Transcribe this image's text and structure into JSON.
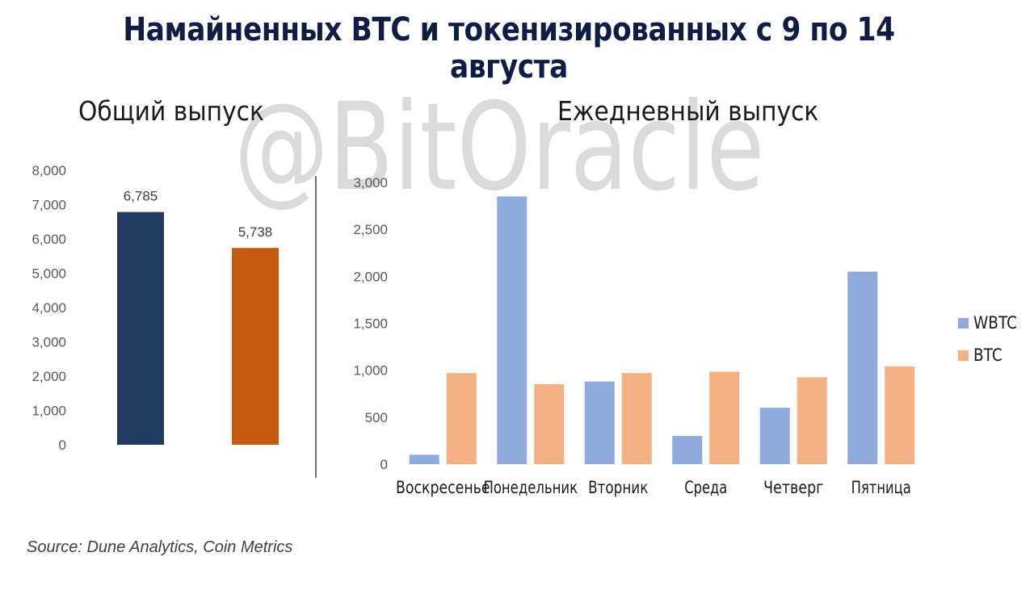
{
  "title": "Намайненных BTC и токенизированных с 9 по 14 августа",
  "watermark": "@BitOracle",
  "source": "Source: Dune Analytics, Coin Metrics",
  "colors": {
    "total_a": "#233a63",
    "total_b": "#c55a11",
    "wbtc": "#8faadc",
    "btc": "#f4b183"
  },
  "chart_data": [
    {
      "type": "bar",
      "title": "Общий выпуск",
      "categories": [
        "",
        ""
      ],
      "values": [
        6785,
        5738
      ],
      "data_labels": [
        "6,785",
        "5,738"
      ],
      "ylim": [
        0,
        8000
      ],
      "yticks": [
        "0",
        "1,000",
        "2,000",
        "3,000",
        "4,000",
        "5,000",
        "6,000",
        "7,000",
        "8,000"
      ],
      "legend": false,
      "grid": false
    },
    {
      "type": "bar",
      "title": "Ежедневный выпуск",
      "categories": [
        "Воскресенье",
        "Понедельник",
        "Вторник",
        "Среда",
        "Четверг",
        "Пятница"
      ],
      "series": [
        {
          "name": "WBTC",
          "values": [
            100,
            2850,
            880,
            300,
            600,
            2050
          ]
        },
        {
          "name": "BTC",
          "values": [
            970,
            850,
            970,
            985,
            925,
            1040
          ]
        }
      ],
      "ylim": [
        0,
        3000
      ],
      "yticks": [
        "0",
        "500",
        "1,000",
        "1,500",
        "2,000",
        "2,500",
        "3,000"
      ],
      "legend": "right",
      "grid": false
    }
  ]
}
